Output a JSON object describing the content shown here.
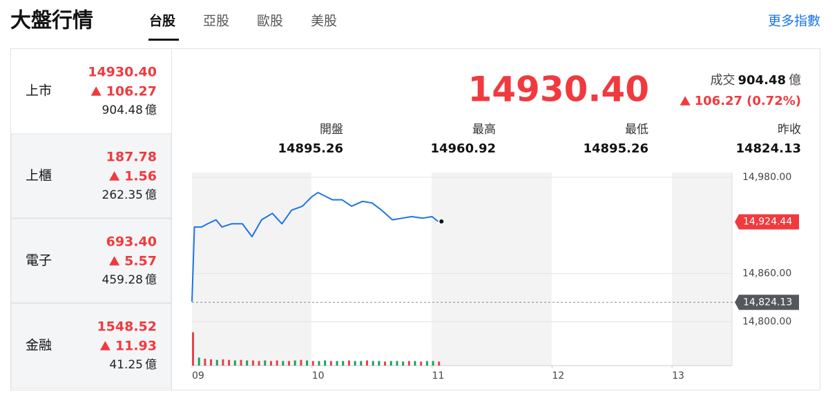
{
  "header": {
    "title": "大盤行情",
    "tabs": [
      "台股",
      "亞股",
      "歐股",
      "美股"
    ],
    "more_link": "更多指數"
  },
  "volume_unit": "億",
  "sidebar": [
    {
      "name": "上市",
      "price": "14930.40",
      "change": "106.27",
      "volume": "904.48"
    },
    {
      "name": "上櫃",
      "price": "187.78",
      "change": "1.56",
      "volume": "262.35"
    },
    {
      "name": "電子",
      "price": "693.40",
      "change": "5.57",
      "volume": "459.28"
    },
    {
      "name": "金融",
      "price": "1548.52",
      "change": "11.93",
      "volume": "41.25"
    }
  ],
  "main": {
    "price": "14930.40",
    "volume_label": "成交",
    "volume": "904.48",
    "change": "106.27",
    "change_percent": "(0.72%)",
    "stats": [
      {
        "label": "開盤",
        "value": "14895.26"
      },
      {
        "label": "最高",
        "value": "14960.92"
      },
      {
        "label": "最低",
        "value": "14895.26"
      },
      {
        "label": "昨收",
        "value": "14824.13"
      }
    ]
  },
  "chart_data": {
    "type": "line",
    "x": [
      9.0,
      9.02,
      9.08,
      9.13,
      9.2,
      9.25,
      9.33,
      9.42,
      9.5,
      9.58,
      9.67,
      9.75,
      9.83,
      9.92,
      10.0,
      10.05,
      10.17,
      10.25,
      10.33,
      10.42,
      10.5,
      10.58,
      10.67,
      10.75,
      10.83,
      10.92,
      11.0,
      11.05
    ],
    "series": [
      {
        "color": "#1a73e8",
        "values": [
          14825,
          14918,
          14918,
          14922,
          14927,
          14918,
          14922,
          14922,
          14906,
          14927,
          14935,
          14922,
          14939,
          14944,
          14956,
          14961,
          14952,
          14952,
          14944,
          14950,
          14948,
          14939,
          14927,
          14929,
          14931,
          14929,
          14931,
          14925
        ]
      }
    ],
    "xlim": [
      9,
      13.5
    ],
    "xticks": [
      {
        "value": 9,
        "label": "09"
      },
      10,
      11,
      12,
      13
    ],
    "ylim": [
      14790,
      14986
    ],
    "yticks": [
      {
        "value": 14980,
        "label": "14,980.00"
      },
      {
        "value": 14860,
        "label": "14,860.00"
      },
      {
        "value": 14800,
        "label": "14,800.00"
      }
    ],
    "markers": [
      {
        "value": 14924.44,
        "label": "14,924.44",
        "color": "#f03a3e"
      },
      {
        "value": 14824.13,
        "label": "14,824.13",
        "color": "#54585d"
      }
    ],
    "volume": {
      "ylim": [
        0,
        60
      ],
      "x": [
        9.0,
        9.05,
        9.1,
        9.15,
        9.2,
        9.25,
        9.3,
        9.35,
        9.4,
        9.45,
        9.5,
        9.55,
        9.6,
        9.65,
        9.7,
        9.75,
        9.8,
        9.85,
        9.9,
        9.95,
        10.0,
        10.05,
        10.1,
        10.15,
        10.2,
        10.25,
        10.3,
        10.35,
        10.4,
        10.45,
        10.5,
        10.55,
        10.6,
        10.65,
        10.7,
        10.75,
        10.8,
        10.85,
        10.9,
        10.95,
        11.0,
        11.05
      ],
      "values": [
        58,
        14,
        12,
        11,
        10,
        11,
        10,
        9,
        10,
        9,
        9,
        8,
        9,
        8,
        9,
        8,
        8,
        9,
        10,
        9,
        8,
        8,
        9,
        8,
        8,
        8,
        9,
        8,
        8,
        9,
        8,
        8,
        7,
        8,
        8,
        7,
        8,
        8,
        7,
        8,
        8,
        7
      ],
      "colors": [
        "#e8414a",
        "#1aa260",
        "#e8414a",
        "#e8414a",
        "#1aa260",
        "#e8414a",
        "#e8414a",
        "#1aa260",
        "#e8414a",
        "#1aa260",
        "#e8414a",
        "#e8414a",
        "#1aa260",
        "#e8414a",
        "#e8414a",
        "#1aa260",
        "#e8414a",
        "#1aa260",
        "#e8414a",
        "#1aa260",
        "#e8414a",
        "#1aa260",
        "#1aa260",
        "#e8414a",
        "#1aa260",
        "#1aa260",
        "#e8414a",
        "#1aa260",
        "#1aa260",
        "#e8414a",
        "#1aa260",
        "#1aa260",
        "#e8414a",
        "#1aa260",
        "#1aa260",
        "#1aa260",
        "#e8414a",
        "#1aa260",
        "#e8414a",
        "#1aa260",
        "#1aa260",
        "#e8414a"
      ]
    }
  }
}
